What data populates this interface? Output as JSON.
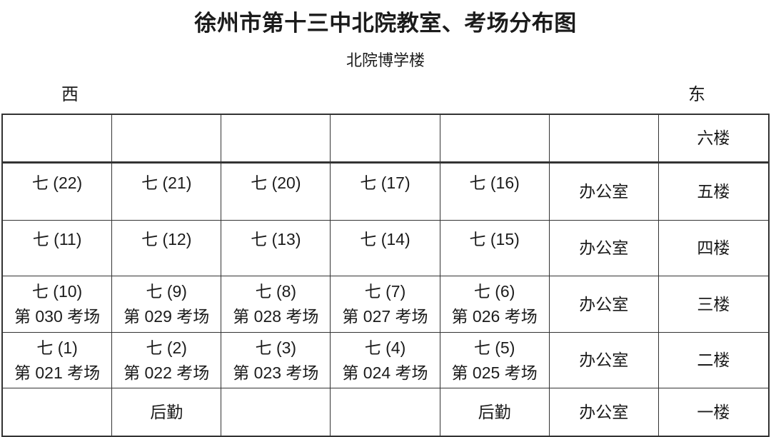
{
  "header": {
    "title": "徐州市第十三中北院教室、考场分布图",
    "building": "北院博学楼",
    "west": "西",
    "east": "东"
  },
  "table": {
    "rows": [
      {
        "cells": [
          {
            "l1": ""
          },
          {
            "l1": ""
          },
          {
            "l1": ""
          },
          {
            "l1": ""
          },
          {
            "l1": ""
          },
          {
            "l1": ""
          },
          {
            "l1": "六楼"
          }
        ]
      },
      {
        "cells": [
          {
            "l1": "七 (22)"
          },
          {
            "l1": "七 (21)"
          },
          {
            "l1": "七 (20)"
          },
          {
            "l1": "七 (17)"
          },
          {
            "l1": "七 (16)"
          },
          {
            "l1": "办公室"
          },
          {
            "l1": "五楼"
          }
        ]
      },
      {
        "cells": [
          {
            "l1": "七 (11)"
          },
          {
            "l1": "七 (12)"
          },
          {
            "l1": "七 (13)"
          },
          {
            "l1": "七 (14)"
          },
          {
            "l1": "七 (15)"
          },
          {
            "l1": "办公室"
          },
          {
            "l1": "四楼"
          }
        ]
      },
      {
        "cells": [
          {
            "l1": "七 (10)",
            "l2": "第 030 考场"
          },
          {
            "l1": "七 (9)",
            "l2": "第 029 考场"
          },
          {
            "l1": "七 (8)",
            "l2": "第 028 考场"
          },
          {
            "l1": "七 (7)",
            "l2": "第 027 考场"
          },
          {
            "l1": "七 (6)",
            "l2": "第 026 考场"
          },
          {
            "l1": "办公室"
          },
          {
            "l1": "三楼"
          }
        ]
      },
      {
        "cells": [
          {
            "l1": "七 (1)",
            "l2": "第 021 考场"
          },
          {
            "l1": "七 (2)",
            "l2": "第 022 考场"
          },
          {
            "l1": "七 (3)",
            "l2": "第 023 考场"
          },
          {
            "l1": "七 (4)",
            "l2": "第 024 考场"
          },
          {
            "l1": "七 (5)",
            "l2": "第 025 考场"
          },
          {
            "l1": "办公室"
          },
          {
            "l1": "二楼"
          }
        ]
      },
      {
        "cells": [
          {
            "l1": ""
          },
          {
            "l1": "后勤"
          },
          {
            "l1": ""
          },
          {
            "l1": ""
          },
          {
            "l1": "后勤"
          },
          {
            "l1": "办公室"
          },
          {
            "l1": "一楼"
          }
        ]
      }
    ]
  }
}
